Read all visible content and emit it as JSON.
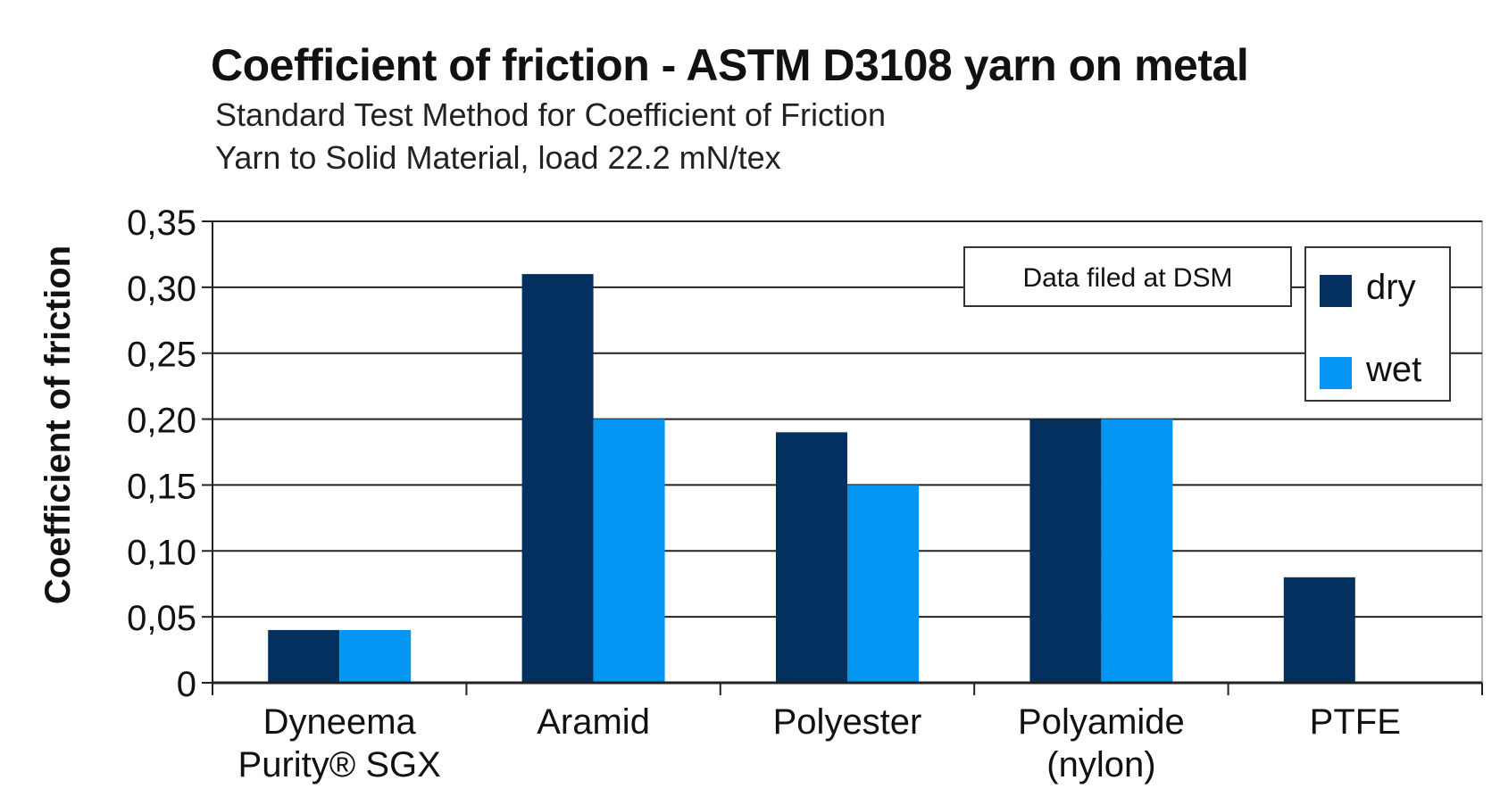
{
  "chart_data": {
    "type": "bar",
    "title": "Coefficient of friction - ASTM D3108 yarn on metal",
    "subtitle_lines": [
      "Standard Test Method for Coefficient of Friction",
      "Yarn to Solid Material, load 22.2 mN/tex"
    ],
    "xlabel": "",
    "ylabel": "Coefficient of friction",
    "ylim": [
      0,
      0.35
    ],
    "yticks": [
      "0",
      "0,05",
      "0,10",
      "0,15",
      "0,20",
      "0,25",
      "0,30",
      "0,35"
    ],
    "yticks_values": [
      0,
      0.05,
      0.1,
      0.15,
      0.2,
      0.25,
      0.3,
      0.35
    ],
    "categories": [
      [
        "Dyneema",
        "Purity® SGX"
      ],
      [
        "Aramid"
      ],
      [
        "Polyester"
      ],
      [
        "Polyamide",
        "(nylon)"
      ],
      [
        "PTFE"
      ]
    ],
    "series": [
      {
        "name": "dry",
        "color": "#03305f",
        "values": [
          0.04,
          0.31,
          0.19,
          0.2,
          0.08
        ]
      },
      {
        "name": "wet",
        "color": "#0595f2",
        "values": [
          0.04,
          0.2,
          0.15,
          0.2,
          0
        ]
      }
    ],
    "grid": true,
    "legend_position": "top-right",
    "annotation": "Data filed at DSM"
  }
}
